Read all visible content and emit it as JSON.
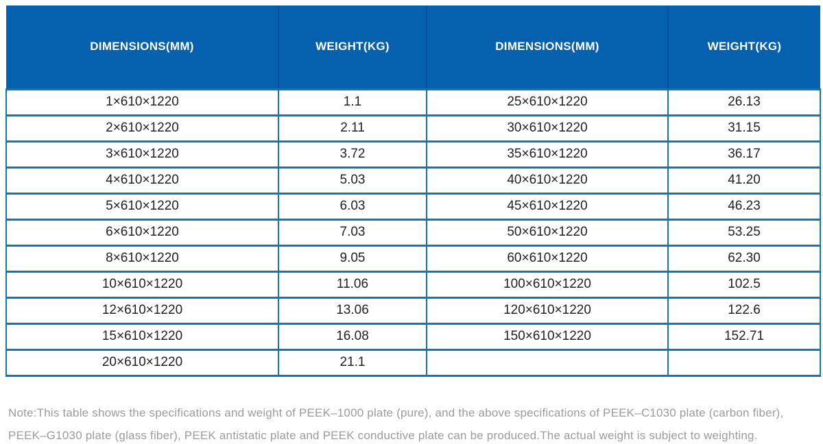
{
  "table": {
    "headers": [
      "DIMENSIONS(MM)",
      "WEIGHT(KG)",
      "DIMENSIONS(MM)",
      "WEIGHT(KG)"
    ],
    "rows": [
      [
        "1×610×1220",
        "1.1",
        "25×610×1220",
        "26.13"
      ],
      [
        "2×610×1220",
        "2.11",
        "30×610×1220",
        "31.15"
      ],
      [
        "3×610×1220",
        "3.72",
        "35×610×1220",
        "36.17"
      ],
      [
        "4×610×1220",
        "5.03",
        "40×610×1220",
        "41.20"
      ],
      [
        "5×610×1220",
        "6.03",
        "45×610×1220",
        "46.23"
      ],
      [
        "6×610×1220",
        "7.03",
        "50×610×1220",
        "53.25"
      ],
      [
        "8×610×1220",
        "9.05",
        "60×610×1220",
        "62.30"
      ],
      [
        "10×610×1220",
        "11.06",
        "100×610×1220",
        "102.5"
      ],
      [
        "12×610×1220",
        "13.06",
        "120×610×1220",
        "122.6"
      ],
      [
        "15×610×1220",
        "16.08",
        "150×610×1220",
        "152.71"
      ],
      [
        "20×610×1220",
        "21.1",
        "",
        ""
      ]
    ]
  },
  "note": {
    "lines": [
      "Note:This table shows the specifications and weight of PEEK–1000 plate (pure), and the above specifications of PEEK–C1030 plate (carbon fiber),",
      "PEEK–G1030 plate (glass fiber), PEEK antistatic plate and PEEK conductive plate can be produced.The actual weight is subject to weighting."
    ]
  },
  "colors": {
    "header_bg": "#0561AE",
    "header_divider": "#0452A0",
    "grid_border": "#0E76BB",
    "body_text": "#212121",
    "note_text": "#9B9B9B"
  }
}
